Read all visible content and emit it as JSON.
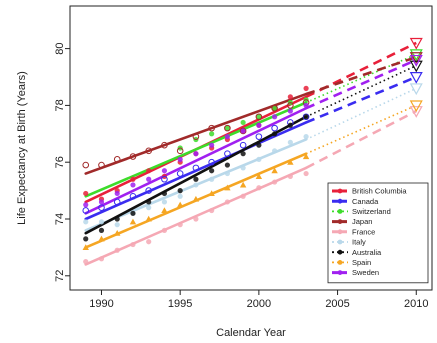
{
  "chart_data": {
    "type": "scatter",
    "xlabel": "Calendar Year",
    "ylabel": "Life Expectancy at Birth (Years)",
    "xlim": [
      1988,
      2011
    ],
    "ylim": [
      71.5,
      81.5
    ],
    "xticks": [
      1990,
      1995,
      2000,
      2005,
      2010
    ],
    "yticks": [
      72,
      74,
      76,
      78,
      80
    ],
    "grid": false,
    "legend_position": "bottom-right",
    "series": [
      {
        "name": "British Columbia",
        "color": "#e8203a",
        "dash": "solid-dashed",
        "marker": "dot",
        "points": [
          [
            1989,
            74.9
          ],
          [
            1990,
            74.7
          ],
          [
            1991,
            75.0
          ],
          [
            1992,
            75.4
          ],
          [
            1993,
            75.7
          ],
          [
            1994,
            75.5
          ],
          [
            1995,
            76.0
          ],
          [
            1996,
            76.3
          ],
          [
            1997,
            76.5
          ],
          [
            1998,
            76.8
          ],
          [
            1999,
            77.1
          ],
          [
            2000,
            77.3
          ],
          [
            2001,
            77.9
          ],
          [
            2002,
            78.3
          ],
          [
            2003,
            78.6
          ]
        ],
        "fit": [
          [
            1989,
            74.6
          ],
          [
            2003,
            78.3
          ]
        ],
        "projection": [
          [
            2003,
            78.3
          ],
          [
            2010,
            80.2
          ]
        ],
        "end_2010": 80.2
      },
      {
        "name": "Canada",
        "color": "#3a2cf0",
        "dash": "solid-dashed",
        "marker": "circle-open",
        "points": [
          [
            1989,
            74.3
          ],
          [
            1990,
            74.4
          ],
          [
            1991,
            74.6
          ],
          [
            1992,
            74.8
          ],
          [
            1993,
            75.0
          ],
          [
            1994,
            75.4
          ],
          [
            1995,
            75.6
          ],
          [
            1996,
            75.8
          ],
          [
            1997,
            76.0
          ],
          [
            1998,
            76.3
          ],
          [
            1999,
            76.6
          ],
          [
            2000,
            76.9
          ],
          [
            2001,
            77.2
          ],
          [
            2002,
            77.4
          ],
          [
            2003,
            77.6
          ]
        ],
        "fit": [
          [
            1989,
            74.0
          ],
          [
            2003,
            77.4
          ]
        ],
        "projection": [
          [
            2003,
            77.4
          ],
          [
            2010,
            79.0
          ]
        ],
        "end_2010": 79.0
      },
      {
        "name": "Switzerland",
        "color": "#3ddc2a",
        "dash": "solid-dotted",
        "marker": "dot",
        "points": [
          [
            1995,
            76.5
          ],
          [
            1996,
            76.8
          ],
          [
            1997,
            77.0
          ],
          [
            1998,
            77.2
          ],
          [
            1999,
            77.4
          ],
          [
            2000,
            77.6
          ],
          [
            2001,
            77.9
          ],
          [
            2002,
            78.1
          ],
          [
            2003,
            78.2
          ]
        ],
        "fit": [
          [
            1989,
            74.8
          ],
          [
            2003,
            78.1
          ]
        ],
        "projection": [
          [
            2003,
            78.1
          ],
          [
            2010,
            79.8
          ]
        ],
        "end_2010": 79.8
      },
      {
        "name": "Japan",
        "color": "#a12a2a",
        "dash": "solid-dashed",
        "marker": "circle-open",
        "points": [
          [
            1989,
            75.9
          ],
          [
            1990,
            75.9
          ],
          [
            1991,
            76.1
          ],
          [
            1992,
            76.2
          ],
          [
            1993,
            76.4
          ],
          [
            1994,
            76.6
          ],
          [
            1995,
            76.4
          ],
          [
            1996,
            76.9
          ],
          [
            1997,
            77.2
          ],
          [
            1998,
            77.2
          ],
          [
            1999,
            77.1
          ],
          [
            2000,
            77.6
          ],
          [
            2001,
            77.9
          ],
          [
            2002,
            78.0
          ],
          [
            2003,
            78.1
          ]
        ],
        "fit": [
          [
            1989,
            75.6
          ],
          [
            2003,
            78.4
          ]
        ],
        "projection": [
          [
            2003,
            78.4
          ],
          [
            2010,
            79.7
          ]
        ],
        "end_2010": 79.7
      },
      {
        "name": "France",
        "color": "#f5a8b4",
        "dash": "solid-dashed",
        "marker": "dot",
        "points": [
          [
            1989,
            72.5
          ],
          [
            1990,
            72.6
          ],
          [
            1991,
            72.9
          ],
          [
            1992,
            73.1
          ],
          [
            1993,
            73.2
          ],
          [
            1994,
            73.6
          ],
          [
            1995,
            73.8
          ],
          [
            1996,
            74.0
          ],
          [
            1997,
            74.3
          ],
          [
            1998,
            74.6
          ],
          [
            1999,
            74.8
          ],
          [
            2000,
            75.1
          ],
          [
            2001,
            75.3
          ],
          [
            2002,
            75.5
          ],
          [
            2003,
            75.6
          ]
        ],
        "fit": [
          [
            1989,
            72.4
          ],
          [
            2003,
            75.8
          ]
        ],
        "projection": [
          [
            2003,
            75.8
          ],
          [
            2010,
            77.8
          ]
        ],
        "end_2010": 77.8
      },
      {
        "name": "Italy",
        "color": "#b9d8ea",
        "dash": "solid-dotted",
        "marker": "dot",
        "points": [
          [
            1989,
            73.9
          ],
          [
            1990,
            73.9
          ],
          [
            1991,
            73.8
          ],
          [
            1992,
            74.2
          ],
          [
            1993,
            74.4
          ],
          [
            1994,
            74.6
          ],
          [
            1995,
            74.8
          ],
          [
            1996,
            75.2
          ],
          [
            1997,
            75.4
          ],
          [
            1998,
            75.6
          ],
          [
            1999,
            75.8
          ],
          [
            2000,
            76.1
          ],
          [
            2001,
            76.4
          ],
          [
            2002,
            76.7
          ],
          [
            2003,
            76.9
          ]
        ],
        "fit": [
          [
            1989,
            73.6
          ],
          [
            2003,
            76.8
          ]
        ],
        "projection": [
          [
            2003,
            76.8
          ],
          [
            2010,
            78.6
          ]
        ],
        "end_2010": 78.6
      },
      {
        "name": "Australia",
        "color": "#111111",
        "dash": "solid-dotted",
        "marker": "dot",
        "points": [
          [
            1989,
            73.3
          ],
          [
            1990,
            73.6
          ],
          [
            1991,
            74.0
          ],
          [
            1992,
            74.2
          ],
          [
            1993,
            74.6
          ],
          [
            1994,
            74.9
          ],
          [
            1995,
            75.0
          ],
          [
            1996,
            75.4
          ],
          [
            1997,
            75.7
          ],
          [
            1998,
            75.9
          ],
          [
            1999,
            76.3
          ],
          [
            2000,
            76.6
          ],
          [
            2001,
            77.0
          ],
          [
            2002,
            77.3
          ],
          [
            2003,
            77.6
          ]
        ],
        "fit": [
          [
            1989,
            73.5
          ],
          [
            2003,
            77.6
          ]
        ],
        "projection": [
          [
            2003,
            77.6
          ],
          [
            2010,
            79.4
          ]
        ],
        "end_2010": 79.4
      },
      {
        "name": "Spain",
        "color": "#f5a623",
        "dash": "solid-dotted",
        "marker": "triangle",
        "points": [
          [
            1989,
            73.0
          ],
          [
            1990,
            73.3
          ],
          [
            1991,
            73.5
          ],
          [
            1992,
            73.9
          ],
          [
            1993,
            74.0
          ],
          [
            1994,
            74.3
          ],
          [
            1995,
            74.5
          ],
          [
            1996,
            74.7
          ],
          [
            1997,
            74.9
          ],
          [
            1998,
            75.1
          ],
          [
            1999,
            75.2
          ],
          [
            2000,
            75.5
          ],
          [
            2001,
            75.7
          ],
          [
            2002,
            76.0
          ],
          [
            2003,
            76.2
          ]
        ],
        "fit": [
          [
            1989,
            73.0
          ],
          [
            2003,
            76.3
          ]
        ],
        "projection": [
          [
            2003,
            76.3
          ],
          [
            2010,
            78.0
          ]
        ],
        "end_2010": 78.0
      },
      {
        "name": "Sweden",
        "color": "#a020f0",
        "dash": "solid-dashed",
        "marker": "dot",
        "points": [
          [
            1989,
            74.5
          ],
          [
            1990,
            74.6
          ],
          [
            1991,
            74.9
          ],
          [
            1992,
            75.2
          ],
          [
            1993,
            75.4
          ],
          [
            1994,
            75.7
          ],
          [
            1995,
            76.1
          ],
          [
            1996,
            76.3
          ],
          [
            1997,
            76.6
          ],
          [
            1998,
            76.9
          ],
          [
            1999,
            77.1
          ],
          [
            2000,
            77.3
          ],
          [
            2001,
            77.6
          ],
          [
            2002,
            77.8
          ],
          [
            2003,
            78.0
          ]
        ],
        "fit": [
          [
            1989,
            74.2
          ],
          [
            2003,
            77.9
          ]
        ],
        "projection": [
          [
            2003,
            77.9
          ],
          [
            2010,
            79.6
          ]
        ],
        "end_2010": 79.6
      }
    ]
  }
}
